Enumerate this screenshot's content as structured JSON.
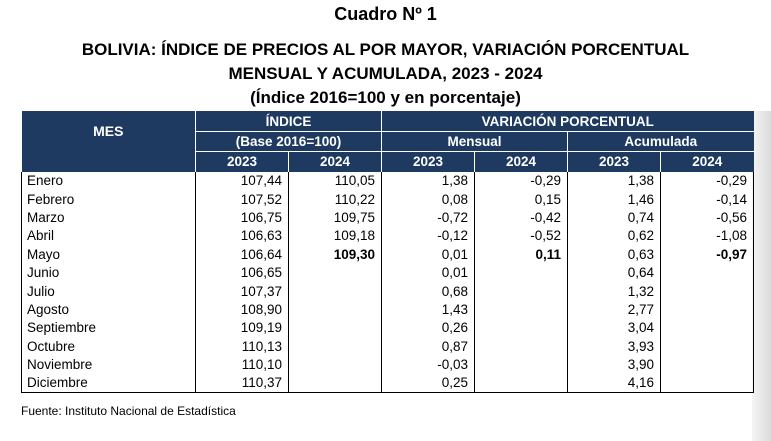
{
  "titles": {
    "line1": "Cuadro Nº 1",
    "line2": "BOLIVIA: ÍNDICE DE PRECIOS AL POR MAYOR, VARIACIÓN PORCENTUAL",
    "line3": "MENSUAL Y ACUMULADA, 2023 - 2024",
    "line4": "(Índice 2016=100 y en porcentaje)"
  },
  "header": {
    "mes": "MES",
    "indice": "ÍNDICE",
    "base": "(Base 2016=100)",
    "variacion": "VARIACIÓN PORCENTUAL",
    "mensual": "Mensual",
    "acumulada": "Acumulada",
    "years": [
      "2023",
      "2024",
      "2023",
      "2024",
      "2023",
      "2024"
    ]
  },
  "rows": [
    {
      "mes": "Enero",
      "i2023": "107,44",
      "i2024": "110,05",
      "m2023": "1,38",
      "m2024": "-0,29",
      "a2023": "1,38",
      "a2024": "-0,29"
    },
    {
      "mes": "Febrero",
      "i2023": "107,52",
      "i2024": "110,22",
      "m2023": "0,08",
      "m2024": "0,15",
      "a2023": "1,46",
      "a2024": "-0,14"
    },
    {
      "mes": "Marzo",
      "i2023": "106,75",
      "i2024": "109,75",
      "m2023": "-0,72",
      "m2024": "-0,42",
      "a2023": "0,74",
      "a2024": "-0,56"
    },
    {
      "mes": "Abril",
      "i2023": "106,63",
      "i2024": "109,18",
      "m2023": "-0,12",
      "m2024": "-0,52",
      "a2023": "0,62",
      "a2024": "-1,08"
    },
    {
      "mes": "Mayo",
      "i2023": "106,64",
      "i2024": "109,30",
      "m2023": "0,01",
      "m2024": "0,11",
      "a2023": "0,63",
      "a2024": "-0,97"
    },
    {
      "mes": "Junio",
      "i2023": "106,65",
      "i2024": "",
      "m2023": "0,01",
      "m2024": "",
      "a2023": "0,64",
      "a2024": ""
    },
    {
      "mes": "Julio",
      "i2023": "107,37",
      "i2024": "",
      "m2023": "0,68",
      "m2024": "",
      "a2023": "1,32",
      "a2024": ""
    },
    {
      "mes": "Agosto",
      "i2023": "108,90",
      "i2024": "",
      "m2023": "1,43",
      "m2024": "",
      "a2023": "2,77",
      "a2024": ""
    },
    {
      "mes": "Septiembre",
      "i2023": "109,19",
      "i2024": "",
      "m2023": "0,26",
      "m2024": "",
      "a2023": "3,04",
      "a2024": ""
    },
    {
      "mes": "Octubre",
      "i2023": "110,13",
      "i2024": "",
      "m2023": "0,87",
      "m2024": "",
      "a2023": "3,93",
      "a2024": ""
    },
    {
      "mes": "Noviembre",
      "i2023": "110,10",
      "i2024": "",
      "m2023": "-0,03",
      "m2024": "",
      "a2023": "3,90",
      "a2024": ""
    },
    {
      "mes": "Diciembre",
      "i2023": "110,37",
      "i2024": "",
      "m2023": "0,25",
      "m2024": "",
      "a2023": "4,16",
      "a2024": ""
    }
  ],
  "footnote": "Fuente: Instituto Nacional de Estadística",
  "colors": {
    "header_bg": "#1f3a60",
    "header_text": "#ffffff"
  }
}
